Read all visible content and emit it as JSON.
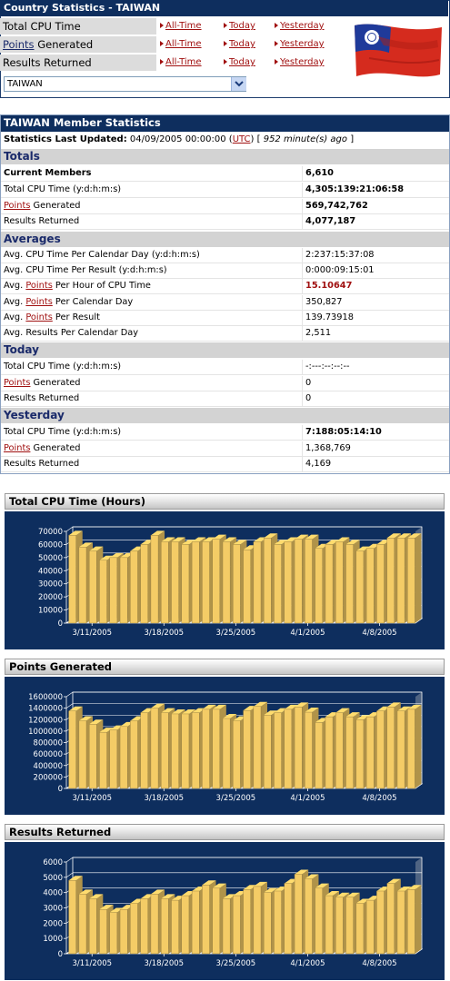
{
  "country_stats": {
    "title": "Country Statistics - TAIWAN",
    "rows": [
      {
        "pre": "Total CPU Time",
        "u": "",
        "post": ""
      },
      {
        "pre": "",
        "u": "Points",
        "post": " Generated"
      },
      {
        "pre": "Results Returned",
        "u": "",
        "post": ""
      }
    ],
    "links": {
      "all_time": "All-Time",
      "today": "Today",
      "yesterday": "Yesterday"
    },
    "country_select": {
      "selected": "TAIWAN"
    },
    "flag_icon": "taiwan-flag-icon"
  },
  "member_stats": {
    "title": "TAIWAN Member Statistics",
    "updated_label": "Statistics Last Updated:",
    "updated_value": " 04/09/2005 00:00:00 (",
    "utc": "UTC",
    "updated_close": ") [ ",
    "ago": "952 minute(s) ago",
    "ago_close": " ]",
    "sections": {
      "totals": "Totals",
      "averages": "Averages",
      "today": "Today",
      "yesterday": "Yesterday"
    },
    "totals": {
      "current_members_label": "Current Members",
      "current_members": "6,610",
      "cpu_label": "Total CPU Time (y:d:h:m:s)",
      "cpu": "4,305:139:21:06:58",
      "points_word": "Points",
      "points_label": " Generated",
      "points": "569,742,762",
      "results_label": "Results Returned",
      "results": "4,077,187"
    },
    "averages": {
      "cpu_per_day_label": "Avg. CPU Time Per Calendar Day (y:d:h:m:s)",
      "cpu_per_day": "2:237:15:37:08",
      "cpu_per_result_label": "Avg. CPU Time Per Result (y:d:h:m:s)",
      "cpu_per_result": "0:000:09:15:01",
      "avg_prefix": "Avg. ",
      "points_word": "Points",
      "pph_label": " Per Hour of CPU Time",
      "pph": "15.10647",
      "ppd_label": " Per Calendar Day",
      "ppd": "350,827",
      "ppr_label": " Per Result",
      "ppr": "139.73918",
      "rpd_label": "Avg. Results Per Calendar Day",
      "rpd": "2,511"
    },
    "today": {
      "cpu_label": "Total CPU Time (y:d:h:m:s)",
      "cpu": "-:---:--:--:--",
      "points_word": "Points",
      "points_label": " Generated",
      "points": "0",
      "results_label": "Results Returned",
      "results": "0"
    },
    "yesterday": {
      "cpu_label": "Total CPU Time (y:d:h:m:s)",
      "cpu": "7:188:05:14:10",
      "points_word": "Points",
      "points_label": " Generated",
      "points": "1,368,769",
      "results_label": "Results Returned",
      "results": "4,169"
    }
  },
  "chart_data": [
    {
      "type": "bar",
      "title": "Total CPU Time (Hours)",
      "xlabel": "",
      "ylabel": "",
      "ylim": [
        0,
        70000
      ],
      "yticks": [
        "0",
        "10000",
        "20000",
        "30000",
        "40000",
        "50000",
        "60000",
        "70000"
      ],
      "ytick_values": [
        0,
        10000,
        20000,
        30000,
        40000,
        50000,
        60000,
        70000
      ],
      "xtick_labels": [
        "3/11/2005",
        "3/18/2005",
        "3/25/2005",
        "4/1/2005",
        "4/8/2005"
      ],
      "xtick_positions": [
        2.5,
        9.5,
        16.5,
        23.5,
        30.5
      ],
      "bar_color": "#f4cc66",
      "values": [
        67000,
        58000,
        55000,
        48000,
        50000,
        50000,
        55000,
        60000,
        67000,
        62000,
        62000,
        60000,
        62000,
        62000,
        64000,
        62000,
        60000,
        56000,
        62000,
        65000,
        60000,
        62000,
        64000,
        64000,
        57000,
        60000,
        62000,
        60000,
        55000,
        57000,
        60000,
        65000,
        65000,
        65000
      ]
    },
    {
      "type": "bar",
      "title": "Points Generated",
      "xlabel": "",
      "ylabel": "",
      "ylim": [
        0,
        1600000
      ],
      "yticks": [
        "0",
        "200000",
        "400000",
        "600000",
        "800000",
        "1000000",
        "1200000",
        "1400000",
        "1600000"
      ],
      "ytick_values": [
        0,
        200000,
        400000,
        600000,
        800000,
        1000000,
        1200000,
        1400000,
        1600000
      ],
      "xtick_labels": [
        "3/11/2005",
        "3/18/2005",
        "3/25/2005",
        "4/1/2005",
        "4/8/2005"
      ],
      "xtick_positions": [
        2.5,
        9.5,
        16.5,
        23.5,
        30.5
      ],
      "bar_color": "#f4cc66",
      "values": [
        1350000,
        1180000,
        1120000,
        980000,
        1020000,
        1080000,
        1180000,
        1320000,
        1400000,
        1320000,
        1300000,
        1300000,
        1320000,
        1380000,
        1380000,
        1220000,
        1180000,
        1360000,
        1430000,
        1280000,
        1320000,
        1380000,
        1420000,
        1330000,
        1150000,
        1250000,
        1320000,
        1250000,
        1200000,
        1250000,
        1350000,
        1420000,
        1350000,
        1380000
      ]
    },
    {
      "type": "bar",
      "title": "Results Returned",
      "xlabel": "",
      "ylabel": "",
      "ylim": [
        0,
        6000
      ],
      "yticks": [
        "0",
        "1000",
        "2000",
        "3000",
        "4000",
        "5000",
        "6000"
      ],
      "ytick_values": [
        0,
        1000,
        2000,
        3000,
        4000,
        5000,
        6000
      ],
      "xtick_labels": [
        "3/11/2005",
        "3/18/2005",
        "3/25/2005",
        "4/1/2005",
        "4/8/2005"
      ],
      "xtick_positions": [
        2.5,
        9.5,
        16.5,
        23.5,
        30.5
      ],
      "bar_color": "#f4cc66",
      "values": [
        4800,
        3900,
        3600,
        2900,
        2700,
        2900,
        3300,
        3600,
        3900,
        3600,
        3500,
        3800,
        4100,
        4500,
        4300,
        3600,
        3800,
        4200,
        4400,
        4000,
        4100,
        4600,
        5200,
        4900,
        4300,
        3800,
        3700,
        3700,
        3300,
        3500,
        4100,
        4600,
        4100,
        4200
      ]
    }
  ]
}
